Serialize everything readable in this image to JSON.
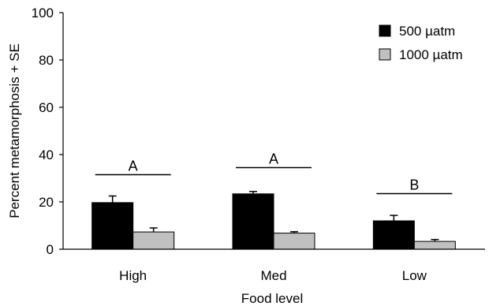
{
  "chart_data": {
    "type": "bar",
    "title": "",
    "xlabel": "Food level",
    "ylabel": "Percent metamorphosis + SE",
    "ylim": [
      0,
      100
    ],
    "yticks": [
      0,
      20,
      40,
      60,
      80,
      100
    ],
    "categories": [
      "High",
      "Med",
      "Low"
    ],
    "series": [
      {
        "name": "500 µatm",
        "values": [
          19.7,
          23.4,
          12.0
        ],
        "errors": [
          2.8,
          1.0,
          2.3
        ],
        "color": "#000000"
      },
      {
        "name": "1000 µatm",
        "values": [
          7.3,
          6.8,
          3.3
        ],
        "errors": [
          1.7,
          0.6,
          0.8
        ],
        "color": "#c0c0c0"
      }
    ],
    "annotations": [
      {
        "label": "A",
        "category": "High",
        "y": 31.5
      },
      {
        "label": "A",
        "category": "Med",
        "y": 34.5
      },
      {
        "label": "B",
        "category": "Low",
        "y": 23.5
      }
    ],
    "legend_position": "top-right",
    "grid": false
  }
}
